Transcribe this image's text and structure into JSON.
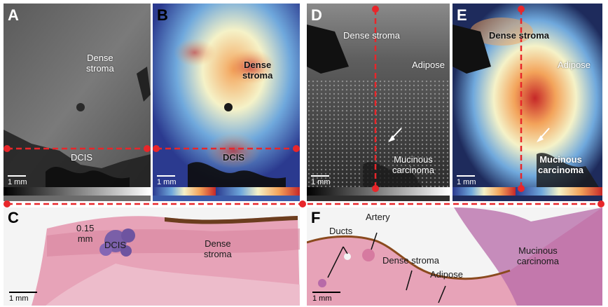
{
  "panel_labels": {
    "a": "A",
    "b": "B",
    "c": "C",
    "d": "D",
    "e": "E",
    "f": "F"
  },
  "annotations": {
    "a_dense_stroma": "Dense\nstroma",
    "a_dcis": "DCIS",
    "b_dense_stroma": "Dense\nstroma",
    "b_dcis": "DCIS",
    "c_margin": "0.15\nmm",
    "c_dcis": "DCIS",
    "c_dense_stroma": "Dense\nstroma",
    "d_dense_stroma": "Dense stroma",
    "d_adipose": "Adipose",
    "d_mucinous": "Mucinous\ncarcinoma",
    "e_dense_stroma": "Dense stroma",
    "e_adipose": "Adipose",
    "e_mucinous": "Mucinous\ncarcinoma",
    "f_ducts": "Ducts",
    "f_artery": "Artery",
    "f_dense_stroma": "Dense stroma",
    "f_adipose": "Adipose",
    "f_mucinous": "Mucinous\ncarcinoma"
  },
  "scale_bars": {
    "a": "1 mm",
    "b": "1 mm",
    "c": "1 mm",
    "d": "1 mm",
    "e": "1 mm",
    "f": "1 mm"
  },
  "colors": {
    "guide_line": "#e8262a",
    "grayscale_bar": [
      "#000000",
      "#ffffff"
    ],
    "heatmap_bar": [
      "#2b3a8f",
      "#6fa8dc",
      "#f5f2c8",
      "#f3a35a",
      "#c62828"
    ],
    "he_stain": "#e7a3b8",
    "he_stroma": "#d9869f"
  },
  "icons": {
    "guide_endpoint": "red-dot-icon",
    "arrow": "arrow-icon"
  }
}
